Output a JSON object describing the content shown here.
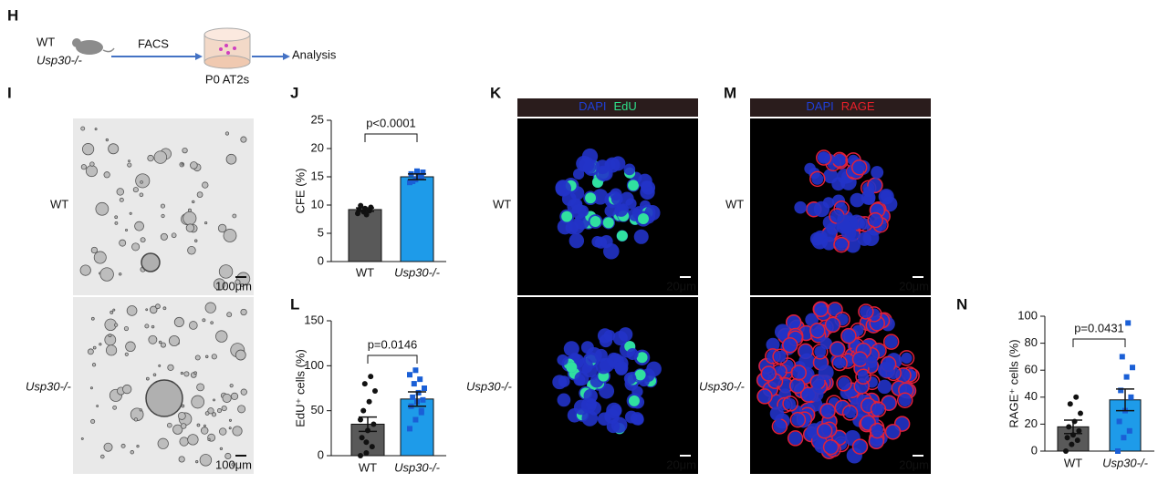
{
  "panel_labels": [
    "H",
    "I",
    "J",
    "K",
    "L",
    "M",
    "N"
  ],
  "schematic": {
    "genotypes": [
      "WT",
      "Usp30-/-"
    ],
    "step": "FACS",
    "sample": "P0 AT2s",
    "output": "Analysis"
  },
  "image_panels": [
    {
      "kind": "brightfield",
      "rows": [
        "WT",
        "Usp30-/-"
      ],
      "scale_bar": "100μm"
    },
    {
      "kind": "edu",
      "channels": [
        "DAPI",
        "EdU"
      ],
      "channel_colors": [
        "#1f3fd8",
        "#2ee08a"
      ],
      "rows": [
        "WT",
        "Usp30-/-"
      ],
      "scale_bar": "20μm"
    },
    {
      "kind": "rage",
      "channels": [
        "DAPI",
        "RAGE"
      ],
      "channel_colors": [
        "#1f3fd8",
        "#e8202a"
      ],
      "rows": [
        "WT",
        "Usp30-/-"
      ],
      "scale_bar": "20μm"
    }
  ],
  "chart_data": [
    {
      "type": "bar",
      "ylabel": "CFE (%)",
      "categories": [
        "WT",
        "Usp30-/-"
      ],
      "values": [
        9.2,
        15.0
      ],
      "errors": [
        0.3,
        0.5
      ],
      "colors": [
        "#595959",
        "#1e9be9"
      ],
      "point_colors": [
        "#111111",
        "#1a5fd6"
      ],
      "points": [
        [
          8.5,
          8.8,
          9.0,
          9.2,
          9.4,
          9.6,
          9.9,
          8.3
        ],
        [
          14.0,
          14.5,
          15.0,
          15.5,
          16.0,
          15.8,
          14.2,
          15.2
        ]
      ],
      "ylim": [
        0,
        25
      ],
      "yticks": [
        0,
        5,
        10,
        15,
        20,
        25
      ],
      "annotation": "p<0.0001"
    },
    {
      "type": "bar",
      "ylabel": "EdU⁺ cells (%)",
      "categories": [
        "WT",
        "Usp30-/-"
      ],
      "values": [
        35,
        63
      ],
      "errors": [
        8,
        8
      ],
      "colors": [
        "#595959",
        "#1e9be9"
      ],
      "point_colors": [
        "#111111",
        "#1a5fd6"
      ],
      "points": [
        [
          0,
          3,
          10,
          20,
          28,
          35,
          50,
          60,
          72,
          80,
          88,
          40,
          15
        ],
        [
          30,
          40,
          48,
          55,
          60,
          62,
          65,
          70,
          75,
          80,
          85,
          90,
          95,
          50
        ]
      ],
      "ylim": [
        0,
        150
      ],
      "yticks": [
        0,
        50,
        100,
        150
      ],
      "annotation": "p=0.0146"
    },
    {
      "type": "bar",
      "ylabel": "RAGE⁺ cells (%)",
      "categories": [
        "WT",
        "Usp30-/-"
      ],
      "values": [
        18,
        38
      ],
      "errors": [
        5,
        8
      ],
      "colors": [
        "#595959",
        "#1e9be9"
      ],
      "point_colors": [
        "#111111",
        "#1a5fd6"
      ],
      "points": [
        [
          0,
          5,
          8,
          10,
          12,
          15,
          18,
          22,
          28,
          35,
          40
        ],
        [
          0,
          10,
          15,
          22,
          30,
          40,
          45,
          55,
          62,
          70,
          95
        ]
      ],
      "ylim": [
        0,
        100
      ],
      "yticks": [
        0,
        20,
        40,
        60,
        80,
        100
      ],
      "annotation": "p=0.0431"
    }
  ]
}
